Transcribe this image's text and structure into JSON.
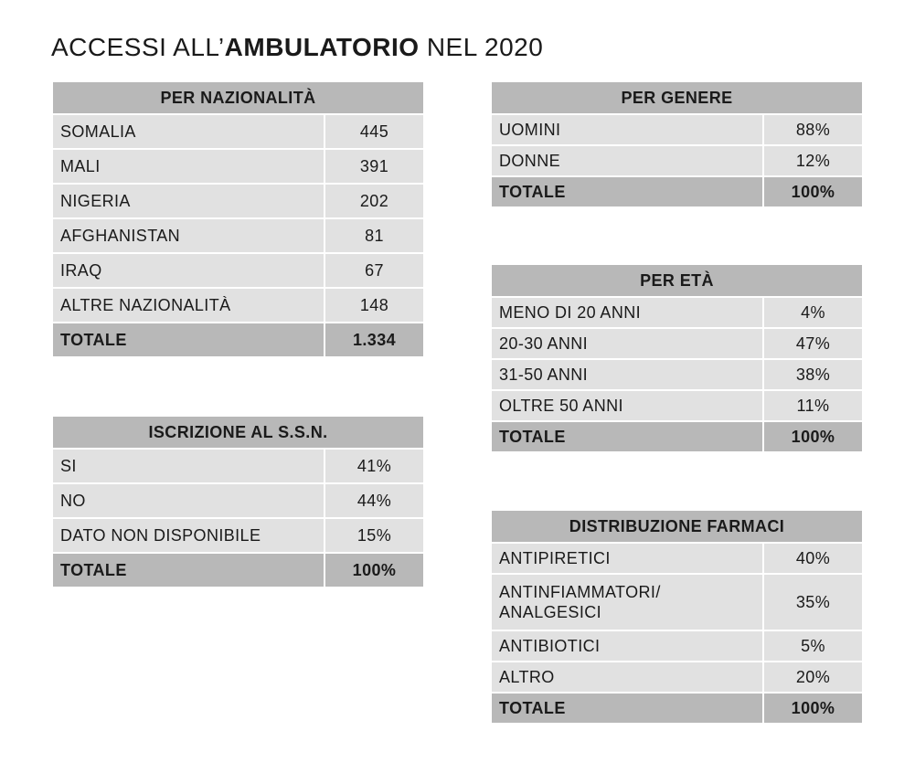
{
  "title": {
    "prefix": "ACCESSI ALL’",
    "emphasis": "AMBULATORIO",
    "suffix": " NEL 2020"
  },
  "tables": {
    "nazionalita": {
      "header": "PER NAZIONALITÀ",
      "rows": [
        {
          "label": "SOMALIA",
          "value": "445"
        },
        {
          "label": "MALI",
          "value": "391"
        },
        {
          "label": "NIGERIA",
          "value": "202"
        },
        {
          "label": "AFGHANISTAN",
          "value": "81"
        },
        {
          "label": "IRAQ",
          "value": "67"
        },
        {
          "label": "ALTRE NAZIONALITÀ",
          "value": "148"
        }
      ],
      "total": {
        "label": "TOTALE",
        "value": "1.334"
      }
    },
    "ssn": {
      "header": "ISCRIZIONE AL S.S.N.",
      "rows": [
        {
          "label": "SI",
          "value": "41%"
        },
        {
          "label": "NO",
          "value": "44%"
        },
        {
          "label": "DATO NON DISPONIBILE",
          "value": "15%"
        }
      ],
      "total": {
        "label": "TOTALE",
        "value": "100%"
      }
    },
    "genere": {
      "header": "PER GENERE",
      "rows": [
        {
          "label": "UOMINI",
          "value": "88%"
        },
        {
          "label": "DONNE",
          "value": "12%"
        }
      ],
      "total": {
        "label": "TOTALE",
        "value": "100%"
      }
    },
    "eta": {
      "header": "PER ETÀ",
      "rows": [
        {
          "label": "MENO DI 20 ANNI",
          "value": "4%"
        },
        {
          "label": "20-30 ANNI",
          "value": "47%"
        },
        {
          "label": "31-50 ANNI",
          "value": "38%"
        },
        {
          "label": "OLTRE 50 ANNI",
          "value": "11%"
        }
      ],
      "total": {
        "label": "TOTALE",
        "value": "100%"
      }
    },
    "farmaci": {
      "header": "DISTRIBUZIONE FARMACI",
      "rows": [
        {
          "label": "ANTIPIRETICI",
          "value": "40%"
        },
        {
          "label": "ANTINFIAMMATORI/",
          "label2": "ANALGESICI",
          "value": "35%"
        },
        {
          "label": "ANTIBIOTICI",
          "value": "5%"
        },
        {
          "label": "ALTRO",
          "value": "20%"
        }
      ],
      "total": {
        "label": "TOTALE",
        "value": "100%"
      }
    }
  },
  "colors": {
    "header_bg": "#b8b8b8",
    "row_bg": "#e1e1e1",
    "total_bg": "#b8b8b8"
  }
}
